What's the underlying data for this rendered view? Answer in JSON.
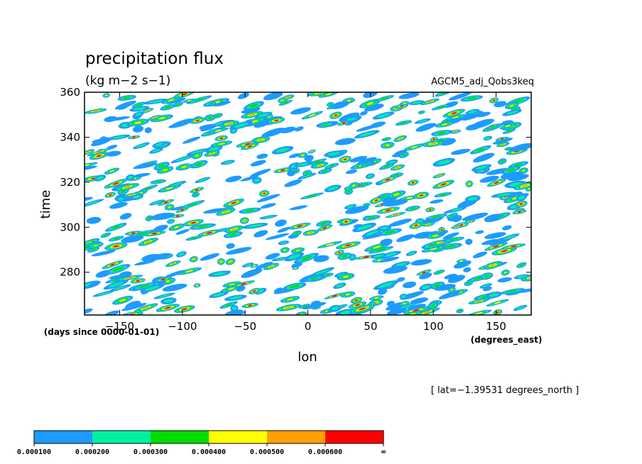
{
  "chart_data": {
    "type": "heatmap",
    "title": "precipitation flux",
    "units": "(kg m−2 s−1)",
    "dataset": "AGCM5_adj_Qobs3keq",
    "xlabel": "lon",
    "x_units": "(degrees_east)",
    "ylabel": "time",
    "y_units": "(days since 0000-01-01)",
    "slice_note": "[ lat=−1.39531 degrees_north ]",
    "xlim": [
      -178,
      178
    ],
    "ylim": [
      261,
      360
    ],
    "x_ticks": [
      -150,
      -100,
      -50,
      0,
      50,
      100,
      150
    ],
    "x_tick_labels": [
      "−150",
      "−100",
      "−50",
      "0",
      "50",
      "100",
      "150"
    ],
    "y_ticks": [
      280,
      300,
      320,
      340,
      360
    ],
    "y_tick_labels": [
      "280",
      "300",
      "320",
      "340",
      "360"
    ],
    "grid": false,
    "colorbar": {
      "colors": [
        "#1e9bff",
        "#00f0a0",
        "#00dc00",
        "#ffff00",
        "#ffa000",
        "#ff0000"
      ],
      "tick_labels": [
        "0.000100",
        "0.000200",
        "0.000300",
        "0.000400",
        "0.000500",
        "0.000600",
        "∞"
      ]
    },
    "blobs_note": "Field rendered as scattered eastward-propagating precipitation cells; values estimated qualitatively (synthetic)."
  }
}
